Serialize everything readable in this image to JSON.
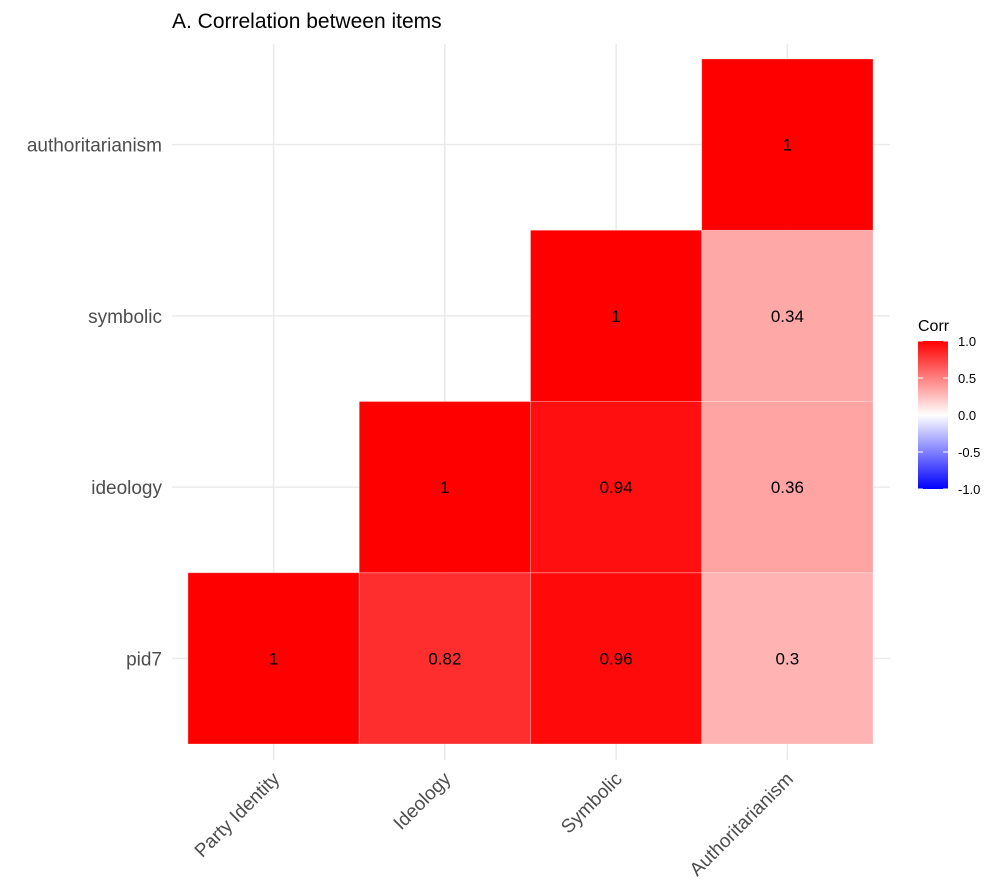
{
  "chart_data": {
    "type": "heatmap",
    "title": "A. Correlation between items",
    "x_labels": [
      "Party Identity",
      "Ideology",
      "Symbolic",
      "Authoritarianism"
    ],
    "y_labels": [
      "pid7",
      "ideology",
      "symbolic",
      "authoritarianism"
    ],
    "cells": [
      {
        "x": "Party Identity",
        "y": "pid7",
        "value": 1,
        "label": "1"
      },
      {
        "x": "Ideology",
        "y": "pid7",
        "value": 0.82,
        "label": "0.82"
      },
      {
        "x": "Symbolic",
        "y": "pid7",
        "value": 0.96,
        "label": "0.96"
      },
      {
        "x": "Authoritarianism",
        "y": "pid7",
        "value": 0.3,
        "label": "0.3"
      },
      {
        "x": "Ideology",
        "y": "ideology",
        "value": 1,
        "label": "1"
      },
      {
        "x": "Symbolic",
        "y": "ideology",
        "value": 0.94,
        "label": "0.94"
      },
      {
        "x": "Authoritarianism",
        "y": "ideology",
        "value": 0.36,
        "label": "0.36"
      },
      {
        "x": "Symbolic",
        "y": "symbolic",
        "value": 1,
        "label": "1"
      },
      {
        "x": "Authoritarianism",
        "y": "symbolic",
        "value": 0.34,
        "label": "0.34"
      },
      {
        "x": "Authoritarianism",
        "y": "authoritarianism",
        "value": 1,
        "label": "1"
      }
    ],
    "legend": {
      "title": "Corr",
      "ticks": [
        "1.0",
        "0.5",
        "0.0",
        "-0.5",
        "-1.0"
      ],
      "range": [
        -1,
        1
      ],
      "placement": "right"
    },
    "colors": {
      "low": "#0000ff",
      "mid": "#ffffff",
      "high": "#ff0000"
    },
    "grid": true
  }
}
